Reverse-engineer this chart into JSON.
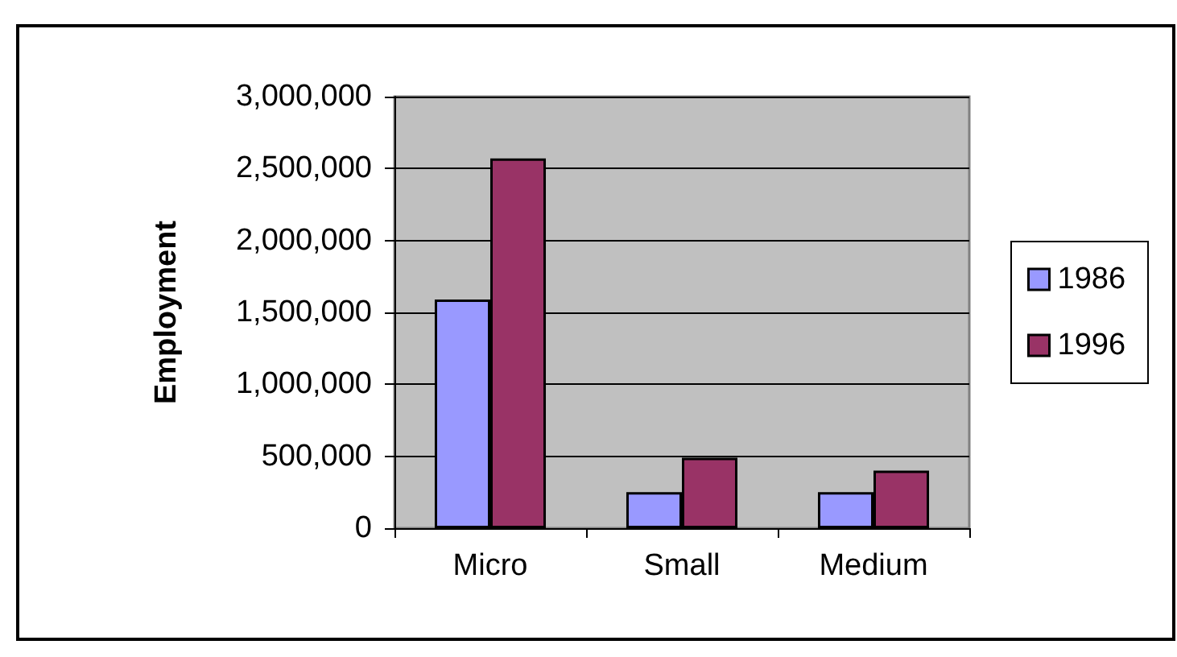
{
  "chart_data": {
    "type": "bar",
    "ylabel": "Employment",
    "categories": [
      "Micro",
      "Small",
      "Medium"
    ],
    "series": [
      {
        "name": "1986",
        "color": "#9999ff",
        "values": [
          1590000,
          250000,
          250000
        ]
      },
      {
        "name": "1996",
        "color": "#993366",
        "values": [
          2570000,
          490000,
          400000
        ]
      }
    ],
    "ylim": [
      0,
      3000000
    ],
    "yticks": [
      {
        "value": 0,
        "label": "0"
      },
      {
        "value": 500000,
        "label": "500,000"
      },
      {
        "value": 1000000,
        "label": "1,000,000"
      },
      {
        "value": 1500000,
        "label": "1,500,000"
      },
      {
        "value": 2000000,
        "label": "2,000,000"
      },
      {
        "value": 2500000,
        "label": "2,500,000"
      },
      {
        "value": 3000000,
        "label": "3,000,000"
      }
    ],
    "grid": "y",
    "legend": "right"
  }
}
